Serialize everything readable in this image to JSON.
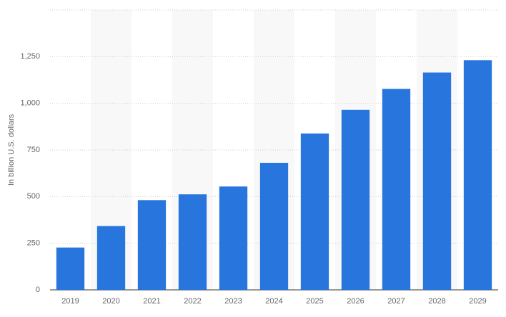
{
  "chart_data": {
    "type": "bar",
    "y_label": "In billion U.S. dollars",
    "categories": [
      "2019",
      "2020",
      "2021",
      "2022",
      "2023",
      "2024",
      "2025",
      "2026",
      "2027",
      "2028",
      "2029"
    ],
    "values": [
      227,
      342,
      481,
      512,
      554,
      681,
      838,
      965,
      1077,
      1165,
      1231
    ],
    "color": "#2876dd",
    "ylim": [
      0,
      1500
    ],
    "yticks": [
      0,
      250,
      500,
      750,
      {
        "value": 1000,
        "label": "1,000"
      },
      {
        "value": 1250,
        "label": "1,250"
      }
    ],
    "grid": true
  }
}
